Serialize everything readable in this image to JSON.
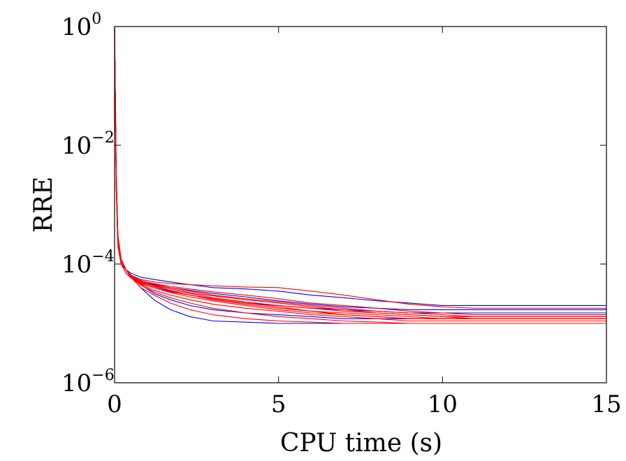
{
  "chart_data": {
    "type": "line",
    "xlabel": "CPU time (s)",
    "ylabel": "RRE",
    "xlim": [
      0,
      15
    ],
    "ylim": [
      1e-06,
      1
    ],
    "yscale": "log",
    "grid": false,
    "x_ticks": [
      "0",
      "5",
      "10",
      "15"
    ],
    "y_ticks": [
      {
        "base": "10",
        "exp": "0"
      },
      {
        "base": "10",
        "exp": "−2"
      },
      {
        "base": "10",
        "exp": "−4"
      },
      {
        "base": "10",
        "exp": "−6"
      }
    ],
    "colors": {
      "series_a": "#0000ff",
      "series_b": "#ff0000"
    },
    "x": [
      0,
      0.05,
      0.1,
      0.2,
      0.35,
      0.5,
      0.8,
      1.2,
      1.7,
      2.3,
      3,
      4,
      5,
      6,
      7,
      8,
      9,
      10,
      11,
      12,
      13,
      14,
      15
    ],
    "series": [
      {
        "color": "#0000ff",
        "values": [
          1.0,
          0.003,
          0.0003,
          0.00012,
          8e-05,
          6e-05,
          4e-05,
          2.5e-05,
          1.7e-05,
          1.3e-05,
          1.1e-05,
          1.05e-05,
          1e-05,
          1e-05,
          1e-05,
          1e-05,
          1e-05,
          1e-05,
          1e-05,
          1e-05,
          1e-05,
          1e-05,
          1e-05
        ]
      },
      {
        "color": "#0000ff",
        "values": [
          0.8,
          0.002,
          0.0002,
          0.0001,
          8e-05,
          7e-05,
          6e-05,
          5.5e-05,
          5e-05,
          4.5e-05,
          4e-05,
          3.8e-05,
          3.5e-05,
          3e-05,
          2.7e-05,
          2.4e-05,
          2.2e-05,
          2e-05,
          2e-05,
          2e-05,
          2e-05,
          2e-05,
          2e-05
        ]
      },
      {
        "color": "#0000ff",
        "values": [
          0.9,
          0.004,
          0.0003,
          0.00011,
          8e-05,
          6.5e-05,
          5e-05,
          4.2e-05,
          3.5e-05,
          3e-05,
          2.6e-05,
          2.2e-05,
          2e-05,
          1.8e-05,
          1.7e-05,
          1.6e-05,
          1.5e-05,
          1.5e-05,
          1.5e-05,
          1.5e-05,
          1.5e-05,
          1.5e-05,
          1.5e-05
        ]
      },
      {
        "color": "#0000ff",
        "values": [
          0.7,
          0.003,
          0.00025,
          0.0001,
          7e-05,
          6e-05,
          4.5e-05,
          3.2e-05,
          2.5e-05,
          2e-05,
          1.7e-05,
          1.5e-05,
          1.4e-05,
          1.3e-05,
          1.2e-05,
          1.2e-05,
          1.2e-05,
          1.2e-05,
          1.2e-05,
          1.2e-05,
          1.2e-05,
          1.2e-05,
          1.2e-05
        ]
      },
      {
        "color": "#0000ff",
        "values": [
          0.9,
          0.002,
          0.00025,
          0.00011,
          8e-05,
          6e-05,
          5e-05,
          4.5e-05,
          4e-05,
          3.6e-05,
          3.2e-05,
          2.8e-05,
          2.4e-05,
          2.1e-05,
          1.9e-05,
          1.8e-05,
          1.7e-05,
          1.7e-05,
          1.7e-05,
          1.7e-05,
          1.7e-05,
          1.7e-05,
          1.7e-05
        ]
      },
      {
        "color": "#ff0000",
        "values": [
          1.0,
          0.003,
          0.0003,
          0.00012,
          8e-05,
          6.5e-05,
          5.5e-05,
          5e-05,
          4.7e-05,
          4.5e-05,
          4.3e-05,
          4.1e-05,
          4e-05,
          3.5e-05,
          3e-05,
          2.5e-05,
          2.1e-05,
          1.9e-05,
          1.8e-05,
          1.8e-05,
          1.8e-05,
          1.8e-05,
          1.8e-05
        ]
      },
      {
        "color": "#ff0000",
        "values": [
          0.9,
          0.003,
          0.0003,
          0.00012,
          8e-05,
          6e-05,
          4.8e-05,
          4e-05,
          3.4e-05,
          3e-05,
          2.6e-05,
          2.2e-05,
          1.9e-05,
          1.6e-05,
          1.4e-05,
          1.3e-05,
          1.2e-05,
          1.2e-05,
          1.2e-05,
          1.2e-05,
          1.2e-05,
          1.2e-05,
          1.2e-05
        ]
      },
      {
        "color": "#ff0000",
        "values": [
          0.8,
          0.002,
          0.0002,
          0.0001,
          7e-05,
          6e-05,
          5e-05,
          4.4e-05,
          3.8e-05,
          3.2e-05,
          2.7e-05,
          2.3e-05,
          2e-05,
          1.8e-05,
          1.6e-05,
          1.5e-05,
          1.4e-05,
          1.3e-05,
          1.3e-05,
          1.3e-05,
          1.3e-05,
          1.3e-05,
          1.3e-05
        ]
      },
      {
        "color": "#ff0000",
        "values": [
          1.0,
          0.004,
          0.0003,
          0.00011,
          8e-05,
          6e-05,
          4.6e-05,
          3.6e-05,
          3e-05,
          2.5e-05,
          2.1e-05,
          1.8e-05,
          1.6e-05,
          1.4e-05,
          1.3e-05,
          1.2e-05,
          1.1e-05,
          1.1e-05,
          1.1e-05,
          1.1e-05,
          1.1e-05,
          1.1e-05,
          1.1e-05
        ]
      },
      {
        "color": "#ff0000",
        "values": [
          0.9,
          0.003,
          0.00028,
          0.00011,
          8e-05,
          6e-05,
          5.2e-05,
          4.7e-05,
          4.2e-05,
          3.8e-05,
          3.4e-05,
          3e-05,
          2.6e-05,
          2.2e-05,
          2e-05,
          1.8e-05,
          1.6e-05,
          1.5e-05,
          1.4e-05,
          1.4e-05,
          1.4e-05,
          1.4e-05,
          1.4e-05
        ]
      },
      {
        "color": "#ff0000",
        "values": [
          0.9,
          0.003,
          0.0003,
          0.00012,
          8e-05,
          6e-05,
          4e-05,
          3e-05,
          2.2e-05,
          1.7e-05,
          1.4e-05,
          1.2e-05,
          1.1e-05,
          1.05e-05,
          1e-05,
          1e-05,
          1e-05,
          1e-05,
          1e-05,
          1e-05,
          1e-05,
          1e-05,
          1e-05
        ]
      },
      {
        "color": "#ff0000",
        "values": [
          1.0,
          0.003,
          0.0003,
          0.00012,
          8e-05,
          6.2e-05,
          5e-05,
          4.2e-05,
          3.6e-05,
          3e-05,
          2.5e-05,
          2.1e-05,
          1.8e-05,
          1.6e-05,
          1.5e-05,
          1.4e-05,
          1.3e-05,
          1.2e-05,
          1.2e-05,
          1.2e-05,
          1.2e-05,
          1.2e-05,
          1.2e-05
        ]
      },
      {
        "color": "#ff0000",
        "values": [
          0.8,
          0.002,
          0.00025,
          0.0001,
          7e-05,
          5.8e-05,
          4.7e-05,
          4e-05,
          3.3e-05,
          2.8e-05,
          2.4e-05,
          2e-05,
          1.7e-05,
          1.5e-05,
          1.4e-05,
          1.3e-05,
          1.2e-05,
          1.2e-05,
          1.2e-05,
          1.2e-05,
          1.2e-05,
          1.2e-05,
          1.2e-05
        ]
      },
      {
        "color": "#ff0000",
        "values": [
          0.9,
          0.003,
          0.0003,
          0.00012,
          8e-05,
          6e-05,
          4.9e-05,
          4.3e-05,
          3.8e-05,
          3.3e-05,
          2.9e-05,
          2.5e-05,
          2.2e-05,
          1.9e-05,
          1.7e-05,
          1.5e-05,
          1.4e-05,
          1.3e-05,
          1.2e-05,
          1.2e-05,
          1.2e-05,
          1.2e-05,
          1.2e-05
        ]
      },
      {
        "color": "#ff0000",
        "values": [
          1.0,
          0.003,
          0.0003,
          0.00012,
          8e-05,
          6e-05,
          4.4e-05,
          3.4e-05,
          2.7e-05,
          2.2e-05,
          1.8e-05,
          1.5e-05,
          1.3e-05,
          1.2e-05,
          1.1e-05,
          1.05e-05,
          1e-05,
          1e-05,
          1e-05,
          1e-05,
          1e-05,
          1e-05,
          1e-05
        ]
      },
      {
        "color": "#ff0000",
        "values": [
          0.9,
          0.003,
          0.0003,
          0.00012,
          8e-05,
          6.3e-05,
          5.3e-05,
          4.6e-05,
          4e-05,
          3.5e-05,
          3e-05,
          2.6e-05,
          2.3e-05,
          2e-05,
          1.8e-05,
          1.6e-05,
          1.5e-05,
          1.4e-05,
          1.3e-05,
          1.3e-05,
          1.3e-05,
          1.3e-05,
          1.3e-05
        ]
      }
    ]
  }
}
